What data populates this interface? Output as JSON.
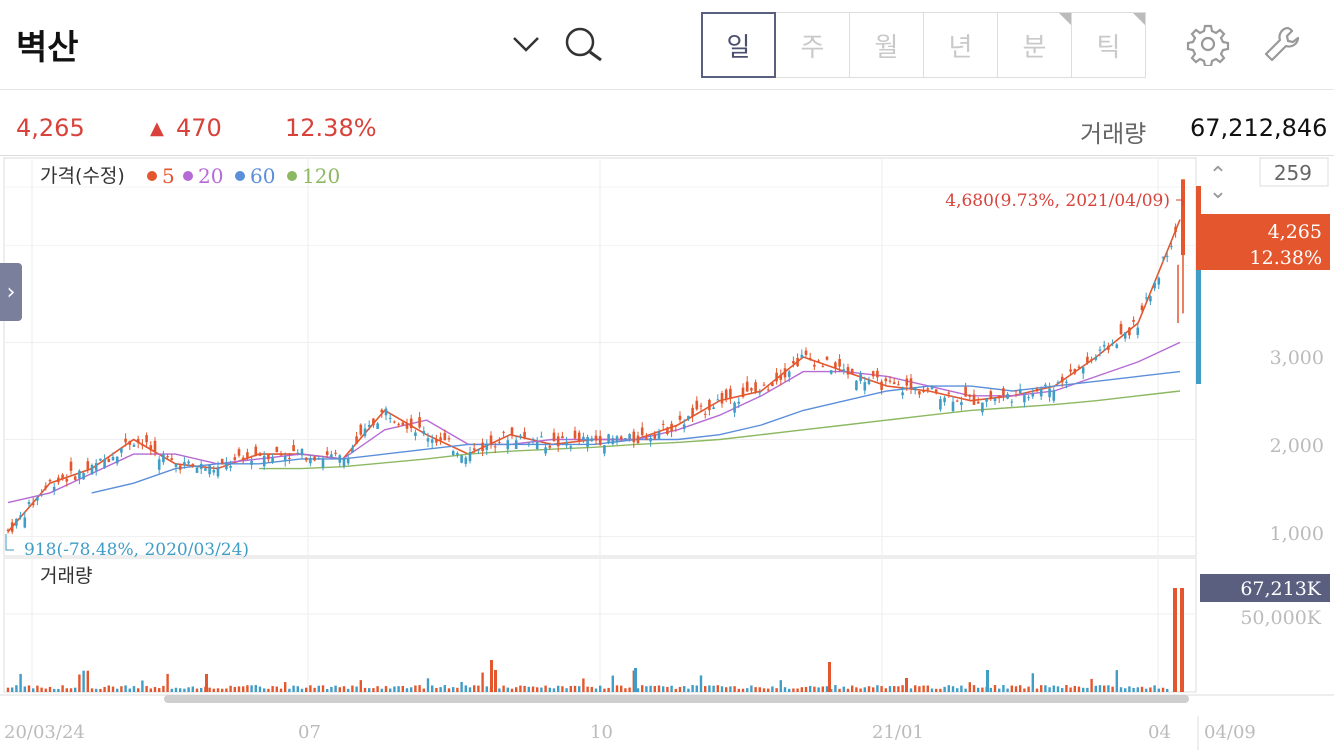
{
  "header": {
    "title": "벽산",
    "tabs": [
      {
        "label": "일",
        "active": true
      },
      {
        "label": "주",
        "active": false
      },
      {
        "label": "월",
        "active": false
      },
      {
        "label": "년",
        "active": false
      },
      {
        "label": "분",
        "active": false
      },
      {
        "label": "틱",
        "active": false
      }
    ],
    "icons": [
      "chevron-down-icon",
      "search-icon",
      "gear-icon",
      "wrench-icon"
    ]
  },
  "quote": {
    "price": "4,265",
    "change_arrow": "▲",
    "change": "470",
    "change_pct": "12.38%",
    "volume_label": "거래량",
    "volume": "67,212,846"
  },
  "chart": {
    "legend_title": "가격(수정)",
    "legend_ma": [
      {
        "label": "5",
        "color": "#e4572e"
      },
      {
        "label": "20",
        "color": "#b66ad4"
      },
      {
        "label": "60",
        "color": "#5b8fd9"
      },
      {
        "label": "120",
        "color": "#8cb861"
      }
    ],
    "zoom_value": "259",
    "high_annotation": "4,680(9.73%, 2021/04/09)",
    "low_annotation": "918(-78.48%, 2020/03/24)",
    "current_price": "4,265",
    "current_pct": "12.38%",
    "y_ticks": [
      "3,000",
      "2,000",
      "1,000"
    ],
    "volume_label": "거래량",
    "volume_current": "67,213K",
    "volume_tick": "50,000K",
    "x_ticks": [
      "20/03/24",
      "07",
      "10",
      "21/01",
      "04"
    ],
    "x_right_label": "04/09",
    "colors": {
      "up": "#e4572e",
      "down": "#3f9dc6",
      "accent": "#5a5f80"
    }
  },
  "chart_data": {
    "type": "candlestick",
    "price_range": [
      918,
      4680
    ],
    "ylim": [
      800,
      4900
    ],
    "moving_averages": [
      "5",
      "20",
      "60",
      "120"
    ],
    "series": [
      {
        "name": "5",
        "values": [
          1050,
          1550,
          1700,
          2000,
          1750,
          1700,
          1850,
          1850,
          1800,
          2300,
          2050,
          1850,
          2050,
          1950,
          2000,
          2000,
          2150,
          2400,
          2500,
          2850,
          2700,
          2550,
          2500,
          2400,
          2450,
          2550,
          2850,
          3200,
          4265
        ]
      },
      {
        "name": "20",
        "values": [
          1350,
          1450,
          1650,
          1850,
          1850,
          1750,
          1800,
          1850,
          1800,
          2100,
          2200,
          1950,
          1950,
          2000,
          2000,
          2000,
          2100,
          2250,
          2450,
          2700,
          2700,
          2650,
          2550,
          2450,
          2450,
          2500,
          2650,
          2800,
          3000
        ]
      },
      {
        "name": "60",
        "values": [
          null,
          null,
          1450,
          1550,
          1700,
          1750,
          1750,
          1800,
          1800,
          1850,
          1900,
          1950,
          1950,
          1950,
          1950,
          2000,
          2000,
          2050,
          2150,
          2300,
          2400,
          2500,
          2550,
          2550,
          2500,
          2550,
          2600,
          2650,
          2700
        ]
      },
      {
        "name": "120",
        "values": [
          null,
          null,
          null,
          null,
          null,
          null,
          1700,
          1700,
          1720,
          1760,
          1800,
          1850,
          1880,
          1900,
          1920,
          1950,
          1970,
          2000,
          2050,
          2100,
          2150,
          2200,
          2250,
          2300,
          2330,
          2360,
          2400,
          2450,
          2500
        ]
      }
    ],
    "volume_current_k": 67213,
    "volume_ylim_k": [
      0,
      70000
    ],
    "x_ticks": [
      "20/03/24",
      "07",
      "10",
      "21/01",
      "04"
    ]
  }
}
